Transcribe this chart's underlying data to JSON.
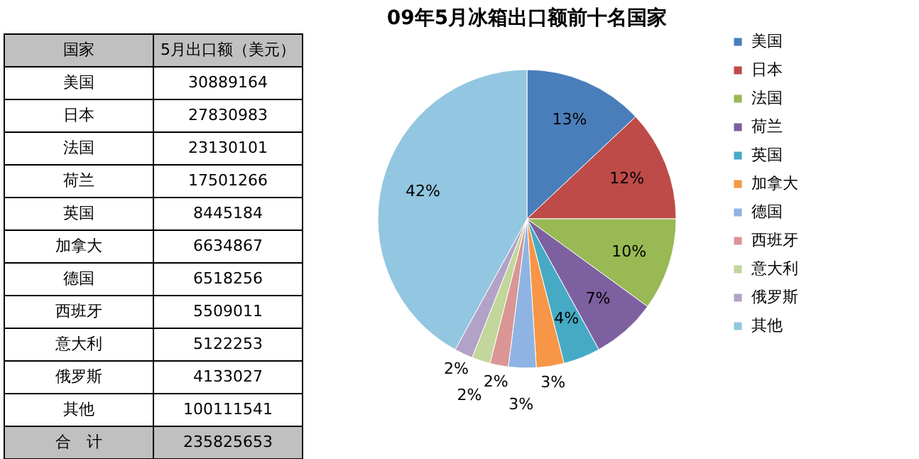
{
  "chart_data": [
    {
      "type": "other",
      "categories": [
        "美国",
        "日本",
        "法国",
        "荷兰",
        "英国",
        "加拿大",
        "德国",
        "西班牙",
        "意大利",
        "俄罗斯",
        "其他"
      ],
      "values": [
        30889164,
        27830983,
        23130101,
        17501266,
        8445184,
        6634867,
        6518256,
        5509011,
        5122253,
        4133027,
        100111541
      ],
      "data_labels": true,
      "annotations": [
        "国家",
        "5月出口额（美元）",
        "合　计",
        "235825653"
      ]
    },
    {
      "type": "pie",
      "title": "09年5月冰箱出口额前十名国家",
      "categories": [
        "美国",
        "日本",
        "法国",
        "荷兰",
        "英国",
        "加拿大",
        "德国",
        "西班牙",
        "意大利",
        "俄罗斯",
        "其他"
      ],
      "values": [
        13,
        12,
        10,
        7,
        4,
        3,
        3,
        2,
        2,
        2,
        42
      ],
      "value_labels": [
        "13%",
        "12%",
        "10%",
        "7%",
        "4%",
        "3%",
        "3%",
        "2%",
        "2%",
        "2%",
        "42%"
      ],
      "colors": [
        "#4a7ebb",
        "#be4b48",
        "#98b954",
        "#7d60a0",
        "#46aac5",
        "#f79646",
        "#8eb4e3",
        "#d99694",
        "#c3d69b",
        "#b3a2c7",
        "#93c6e0"
      ],
      "legend": "right"
    }
  ]
}
